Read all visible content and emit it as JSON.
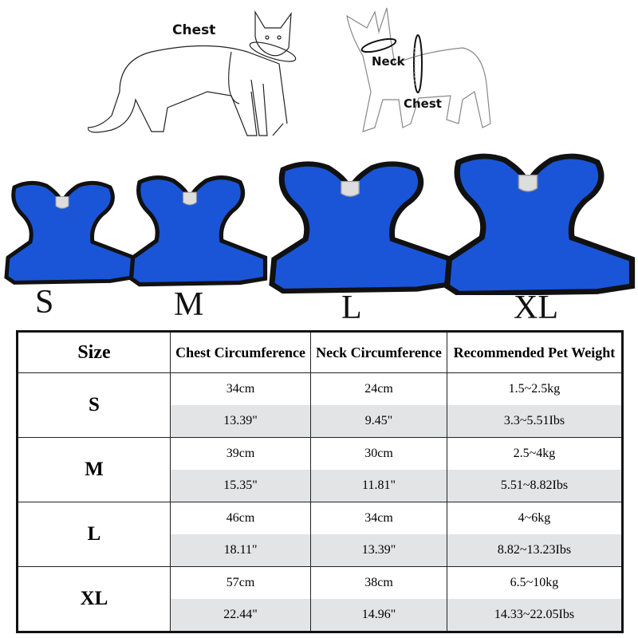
{
  "diagram": {
    "cat_chest_label": "Chest",
    "dog_neck_label": "Neck",
    "dog_chest_label": "Chest"
  },
  "harness_sizes": [
    "S",
    "M",
    "L",
    "XL"
  ],
  "colors": {
    "harness": "#1a55d8",
    "trim": "#111111",
    "alt_row": "#e3e4e6"
  },
  "table": {
    "headers": [
      "Size",
      "Chest Circumference",
      "Neck Circumference",
      "Recommended Pet Weight"
    ],
    "rows": [
      {
        "size": "S",
        "chest_cm": "34cm",
        "chest_in": "13.39\"",
        "neck_cm": "24cm",
        "neck_in": "9.45\"",
        "weight_kg": "1.5~2.5kg",
        "weight_lbs": "3.3~5.51Ibs"
      },
      {
        "size": "M",
        "chest_cm": "39cm",
        "chest_in": "15.35\"",
        "neck_cm": "30cm",
        "neck_in": "11.81\"",
        "weight_kg": "2.5~4kg",
        "weight_lbs": "5.51~8.82Ibs"
      },
      {
        "size": "L",
        "chest_cm": "46cm",
        "chest_in": "18.11\"",
        "neck_cm": "34cm",
        "neck_in": "13.39\"",
        "weight_kg": "4~6kg",
        "weight_lbs": "8.82~13.23Ibs"
      },
      {
        "size": "XL",
        "chest_cm": "57cm",
        "chest_in": "22.44\"",
        "neck_cm": "38cm",
        "neck_in": "14.96\"",
        "weight_kg": "6.5~10kg",
        "weight_lbs": "14.33~22.05Ibs"
      }
    ]
  }
}
